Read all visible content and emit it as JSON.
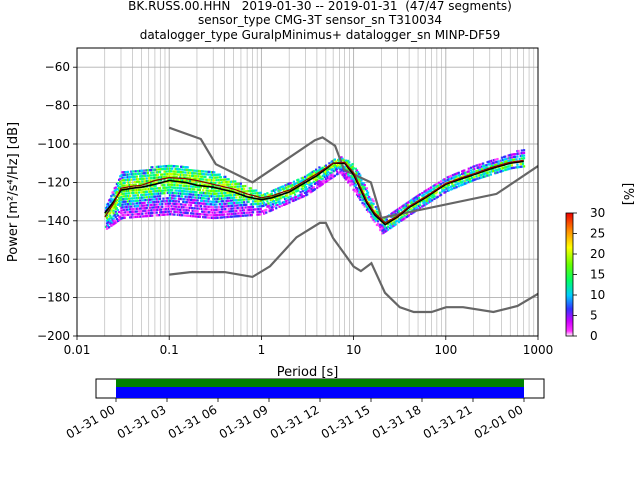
{
  "title_lines": [
    "BK.RUSS.00.HHN   2019-01-30 -- 2019-01-31  (47/47 segments)",
    "sensor_type CMG-3T sensor_sn T310034",
    "datalogger_type GuralpMinimus+ datalogger_sn MINP-DF59"
  ],
  "colorbar": {
    "label": "[%]",
    "ticks": [
      "0",
      "5",
      "10",
      "15",
      "20",
      "25",
      "30"
    ],
    "range": [
      0,
      30
    ]
  },
  "timeline": {
    "tick_labels": [
      "01-31 00",
      "01-31 03",
      "01-31 06",
      "01-31 09",
      "01-31 12",
      "01-31 15",
      "01-31 18",
      "01-31 21",
      "02-01 00"
    ],
    "bar_colors": [
      "#008000",
      "#0000ff"
    ]
  },
  "colors": {
    "model": "#666666",
    "mean": "#000000",
    "mode": "#8b0000",
    "grid": "#b0b0b0"
  },
  "chart_data": {
    "type": "ppsd",
    "xlabel": "Period [s]",
    "ylabel": "Power [m²/s⁴/Hz] [dB]",
    "xscale": "log",
    "xlim": [
      0.01,
      1000
    ],
    "ylim": [
      -200,
      -50
    ],
    "x_ticks": [
      {
        "v": 0.01,
        "label": "0.01"
      },
      {
        "v": 0.1,
        "label": "0.1"
      },
      {
        "v": 1,
        "label": "1"
      },
      {
        "v": 10,
        "label": "10"
      },
      {
        "v": 100,
        "label": "100"
      },
      {
        "v": 1000,
        "label": "1000"
      }
    ],
    "y_ticks": [
      {
        "v": -200,
        "label": "−200"
      },
      {
        "v": -180,
        "label": "−180"
      },
      {
        "v": -160,
        "label": "−160"
      },
      {
        "v": -140,
        "label": "−140"
      },
      {
        "v": -120,
        "label": "−120"
      },
      {
        "v": -100,
        "label": "−100"
      },
      {
        "v": -80,
        "label": "−80"
      },
      {
        "v": -60,
        "label": "−60"
      }
    ],
    "grid": true,
    "nhnm": [
      [
        0.1,
        -91.5
      ],
      [
        0.22,
        -97.4
      ],
      [
        0.32,
        -110.5
      ],
      [
        0.8,
        -120
      ],
      [
        3.8,
        -98
      ],
      [
        4.6,
        -96.5
      ],
      [
        6.3,
        -101
      ],
      [
        7.9,
        -113.5
      ],
      [
        15.4,
        -120
      ],
      [
        20,
        -138.5
      ],
      [
        354.8,
        -126
      ],
      [
        1000,
        -111.5
      ]
    ],
    "nlnm": [
      [
        0.1,
        -168
      ],
      [
        0.17,
        -166.7
      ],
      [
        0.4,
        -166.7
      ],
      [
        0.8,
        -169.2
      ],
      [
        1.24,
        -163.7
      ],
      [
        2.4,
        -148.6
      ],
      [
        4.3,
        -141.1
      ],
      [
        5,
        -141.1
      ],
      [
        6,
        -149
      ],
      [
        10,
        -163.8
      ],
      [
        12,
        -166.2
      ],
      [
        15.6,
        -162.1
      ],
      [
        21.9,
        -177.5
      ],
      [
        31.6,
        -185
      ],
      [
        45,
        -187.5
      ],
      [
        70,
        -187.5
      ],
      [
        101,
        -185
      ],
      [
        154,
        -185
      ],
      [
        328,
        -187.5
      ],
      [
        600,
        -184.4
      ],
      [
        1000,
        -178
      ]
    ],
    "mean_curve": [
      [
        0.02,
        -136
      ],
      [
        0.025,
        -130
      ],
      [
        0.03,
        -124
      ],
      [
        0.04,
        -123
      ],
      [
        0.05,
        -122.5
      ],
      [
        0.07,
        -121
      ],
      [
        0.1,
        -119
      ],
      [
        0.15,
        -120
      ],
      [
        0.2,
        -121.5
      ],
      [
        0.3,
        -122.5
      ],
      [
        0.5,
        -125
      ],
      [
        0.7,
        -127.5
      ],
      [
        1,
        -129
      ],
      [
        1.3,
        -128
      ],
      [
        2,
        -125
      ],
      [
        3,
        -120
      ],
      [
        4,
        -116.5
      ],
      [
        5,
        -113
      ],
      [
        6,
        -110
      ],
      [
        8,
        -110
      ],
      [
        10,
        -116
      ],
      [
        12,
        -124
      ],
      [
        14,
        -131
      ],
      [
        17,
        -137
      ],
      [
        22,
        -142
      ],
      [
        30,
        -138
      ],
      [
        40,
        -133
      ],
      [
        60,
        -128
      ],
      [
        80,
        -124
      ],
      [
        100,
        -121
      ],
      [
        150,
        -118
      ],
      [
        200,
        -116
      ],
      [
        300,
        -113
      ],
      [
        500,
        -110
      ],
      [
        700,
        -109
      ]
    ],
    "mode_curve": [
      [
        0.02,
        -138
      ],
      [
        0.025,
        -131
      ],
      [
        0.03,
        -123
      ],
      [
        0.04,
        -122
      ],
      [
        0.05,
        -121.5
      ],
      [
        0.07,
        -119
      ],
      [
        0.1,
        -117.5
      ],
      [
        0.15,
        -118
      ],
      [
        0.2,
        -119
      ],
      [
        0.3,
        -121
      ],
      [
        0.5,
        -123.5
      ],
      [
        0.7,
        -126
      ],
      [
        1,
        -128
      ],
      [
        1.3,
        -127
      ],
      [
        2,
        -124
      ],
      [
        3,
        -119
      ],
      [
        4,
        -115.5
      ],
      [
        5,
        -112.5
      ],
      [
        6,
        -110
      ],
      [
        8,
        -109.5
      ],
      [
        10,
        -115
      ],
      [
        12,
        -123
      ],
      [
        14,
        -130
      ],
      [
        17,
        -136
      ],
      [
        22,
        -141
      ],
      [
        30,
        -137.5
      ],
      [
        40,
        -132.5
      ],
      [
        60,
        -127.5
      ],
      [
        80,
        -123.5
      ],
      [
        100,
        -120.5
      ],
      [
        150,
        -117.5
      ],
      [
        200,
        -115.5
      ],
      [
        300,
        -112.5
      ],
      [
        500,
        -109.5
      ],
      [
        700,
        -108.5
      ]
    ],
    "density_spread_db": {
      "upper": [
        [
          0.02,
          -132
        ],
        [
          0.03,
          -114
        ],
        [
          0.1,
          -110
        ],
        [
          0.3,
          -114
        ],
        [
          1,
          -125
        ],
        [
          3,
          -115
        ],
        [
          7,
          -106
        ],
        [
          10,
          -110
        ],
        [
          20,
          -138
        ],
        [
          50,
          -125
        ],
        [
          100,
          -116
        ],
        [
          200,
          -110
        ],
        [
          500,
          -104
        ],
        [
          700,
          -102
        ]
      ],
      "lower": [
        [
          0.02,
          -144
        ],
        [
          0.03,
          -138
        ],
        [
          0.1,
          -136
        ],
        [
          0.3,
          -138
        ],
        [
          1,
          -136
        ],
        [
          3,
          -126
        ],
        [
          7,
          -114
        ],
        [
          10,
          -124
        ],
        [
          20,
          -146
        ],
        [
          50,
          -133
        ],
        [
          100,
          -124
        ],
        [
          200,
          -118
        ],
        [
          500,
          -112
        ],
        [
          700,
          -111
        ]
      ]
    }
  }
}
